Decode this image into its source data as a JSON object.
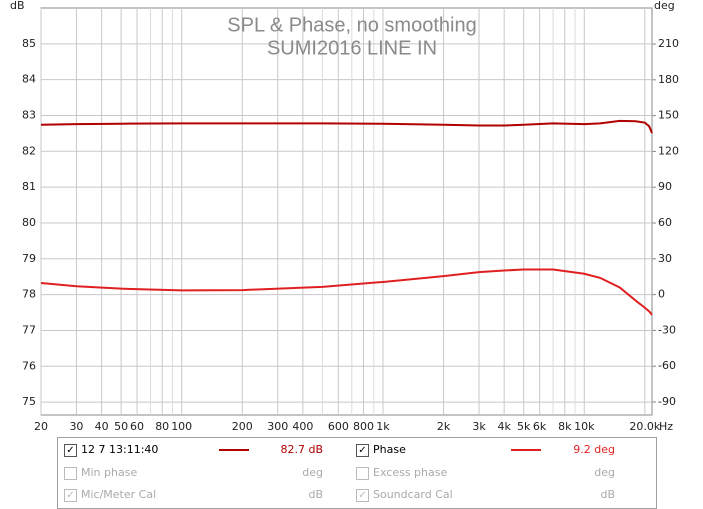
{
  "chart_data": {
    "type": "line",
    "title": "SPL & Phase, no smoothing",
    "subtitle": "SUMI2016 LINE IN",
    "ylabel": "dB",
    "y2label": "deg",
    "xlabel": "Hz",
    "log_x": true,
    "grid": true,
    "x": [
      20,
      30,
      50,
      100,
      200,
      500,
      1000,
      2000,
      3000,
      4000,
      5000,
      7000,
      10000,
      12000,
      15000,
      18000,
      20000,
      21000,
      21700
    ],
    "series": [
      {
        "name": "12 7 13:11:40",
        "color": "#b00000",
        "readout": "82.7 dB",
        "checked": true,
        "values": [
          82.74,
          82.76,
          82.77,
          82.78,
          82.78,
          82.78,
          82.77,
          82.74,
          82.72,
          82.72,
          82.74,
          82.78,
          82.76,
          82.78,
          82.85,
          82.84,
          82.8,
          82.7,
          82.51
        ]
      },
      {
        "name": "Phase",
        "color": "#e02020",
        "readout": "9.2 deg",
        "checked": true,
        "axis": "y2",
        "values": [
          9.7,
          7,
          5,
          3.5,
          3.8,
          6.5,
          10.6,
          15.5,
          18.8,
          20.2,
          21,
          21,
          17.5,
          14,
          6,
          -5,
          -11,
          -14,
          -17
        ]
      }
    ],
    "legend_extra": [
      {
        "name": "Min phase",
        "unit": "deg",
        "checked": false
      },
      {
        "name": "Excess phase",
        "unit": "deg",
        "checked": false
      },
      {
        "name": "Mic/Meter Cal",
        "unit": "dB",
        "checked": true
      },
      {
        "name": "Soundcard Cal",
        "unit": "dB",
        "checked": true
      }
    ],
    "xlim": [
      20,
      21700
    ],
    "xticks": [
      20,
      30,
      40,
      50,
      60,
      80,
      100,
      200,
      300,
      400,
      600,
      800,
      {
        "value": 1000,
        "label": "1k"
      },
      {
        "value": 2000,
        "label": "2k"
      },
      {
        "value": 3000,
        "label": "3k"
      },
      {
        "value": 4000,
        "label": "4k"
      },
      {
        "value": 5000,
        "label": "5k"
      },
      {
        "value": 6000,
        "label": "6k"
      },
      {
        "value": 8000,
        "label": "8k"
      },
      {
        "value": 10000,
        "label": "10k"
      },
      {
        "value": 20000,
        "label": "20.0k"
      }
    ],
    "x_minor_grid": [
      70,
      90,
      500,
      700,
      900,
      7000,
      9000
    ],
    "ylim": [
      74.64,
      86.0
    ],
    "yticks": [
      75,
      76,
      77,
      78,
      79,
      80,
      81,
      82,
      83,
      84,
      85
    ],
    "y2lim": [
      -100.9,
      240.2
    ],
    "y2ticks": [
      -90,
      -60,
      -30,
      0,
      30,
      60,
      90,
      120,
      150,
      180,
      210
    ]
  }
}
